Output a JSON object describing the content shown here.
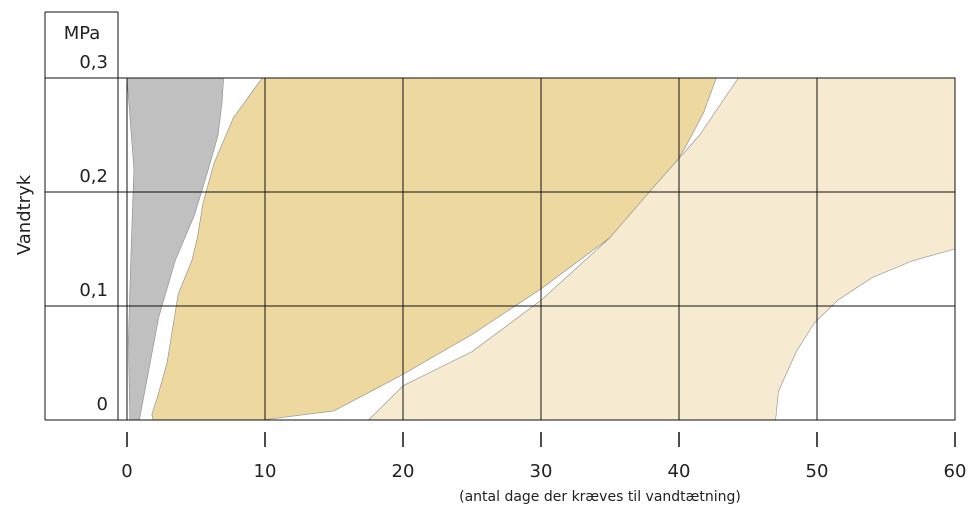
{
  "chart_data": {
    "type": "area",
    "title": "",
    "xlabel": "(antal dage der kræves til vandtætning)",
    "ylabel": "Vandtryk",
    "y_unit": "MPa",
    "xlim": [
      0,
      60
    ],
    "ylim": [
      0,
      0.3
    ],
    "x_ticks": [
      0,
      10,
      20,
      30,
      40,
      50,
      60
    ],
    "x_tick_labels": [
      "0",
      "10",
      "20",
      "30",
      "40",
      "50",
      "60"
    ],
    "y_ticks": [
      0,
      0.1,
      0.2,
      0.3
    ],
    "y_tick_labels": [
      "0",
      "0,1",
      "0,2",
      "0,3"
    ],
    "grid": true,
    "series": [
      {
        "color": "#c0c0c0",
        "boundary": [
          [
            0,
            0.3
          ],
          [
            0.5,
            0.22
          ],
          [
            0.3,
            0.15
          ],
          [
            0.1,
            0.07
          ],
          [
            0.2,
            0.0
          ],
          [
            0.9,
            0.0
          ],
          [
            2.3,
            0.09
          ],
          [
            3.5,
            0.14
          ],
          [
            4.9,
            0.18
          ],
          [
            5.9,
            0.22
          ],
          [
            6.6,
            0.25
          ],
          [
            6.9,
            0.28
          ],
          [
            7.0,
            0.3
          ]
        ]
      },
      {
        "color": "#edd8a0",
        "boundary": [
          [
            9.8,
            0.3
          ],
          [
            7.7,
            0.265
          ],
          [
            6.3,
            0.225
          ],
          [
            5.5,
            0.19
          ],
          [
            5.1,
            0.16
          ],
          [
            4.7,
            0.14
          ],
          [
            3.7,
            0.11
          ],
          [
            2.9,
            0.05
          ],
          [
            2.2,
            0.02
          ],
          [
            1.8,
            0.005
          ],
          [
            1.9,
            0.0
          ],
          [
            9.8,
            0.0
          ],
          [
            15,
            0.008
          ],
          [
            20,
            0.04
          ],
          [
            25,
            0.075
          ],
          [
            30,
            0.115
          ],
          [
            35,
            0.16
          ],
          [
            38.5,
            0.2
          ],
          [
            40.5,
            0.24
          ],
          [
            41.8,
            0.27
          ],
          [
            42.7,
            0.3
          ]
        ]
      },
      {
        "color": "#f6ead0",
        "boundary": [
          [
            44.3,
            0.3
          ],
          [
            41.5,
            0.25
          ],
          [
            38.2,
            0.205
          ],
          [
            35,
            0.16
          ],
          [
            30,
            0.105
          ],
          [
            25,
            0.06
          ],
          [
            20,
            0.03
          ],
          [
            17.5,
            0.0
          ],
          [
            47,
            0.0
          ],
          [
            47.2,
            0.025
          ],
          [
            48.5,
            0.06
          ],
          [
            49.8,
            0.085
          ],
          [
            51.5,
            0.105
          ],
          [
            54,
            0.125
          ],
          [
            57,
            0.14
          ],
          [
            60,
            0.15
          ],
          [
            60,
            0.3
          ]
        ]
      }
    ]
  }
}
